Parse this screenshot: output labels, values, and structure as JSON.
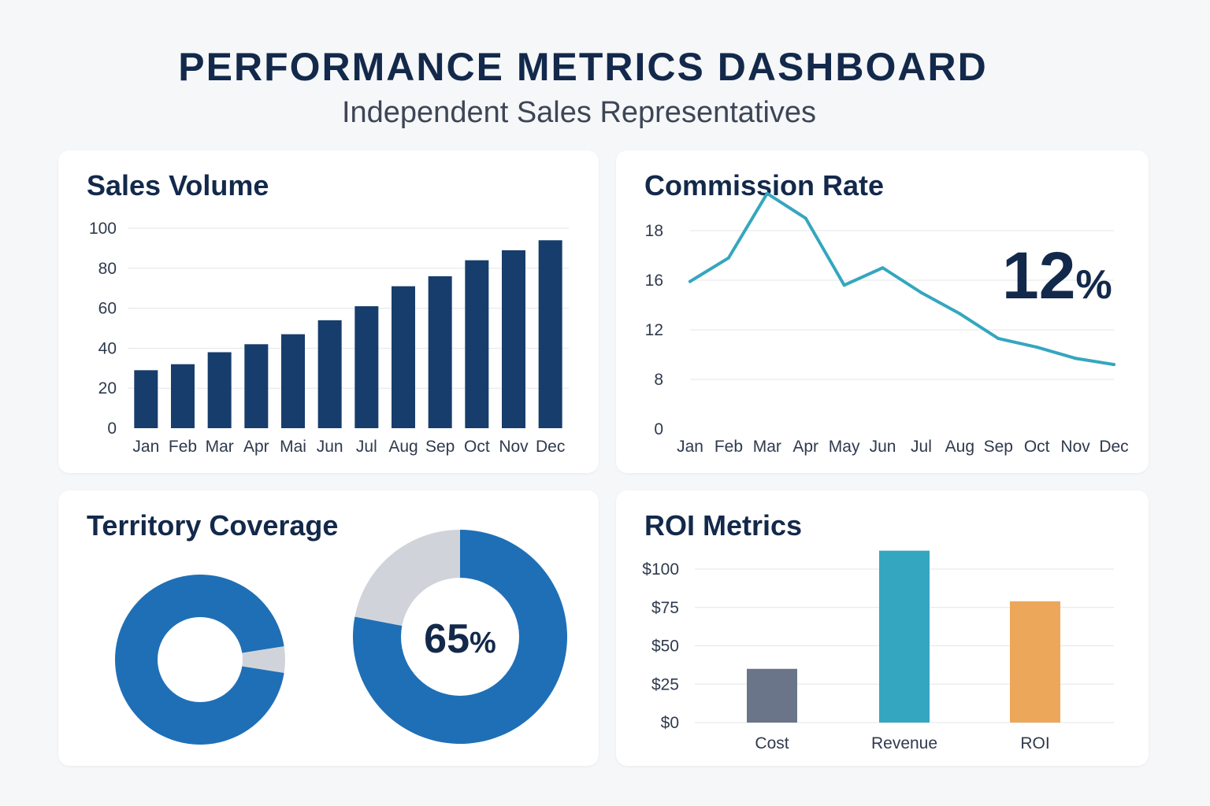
{
  "header": {
    "title": "PERFORMANCE METRICS DASHBOARD",
    "subtitle": "Independent Sales Representatives"
  },
  "colors": {
    "navy": "#163d6b",
    "teal": "#35a6bf",
    "blue": "#1f6fb6",
    "gray": "#d0d4da",
    "slate": "#6a7589",
    "orange": "#eda75a",
    "grid": "#e3e6ea"
  },
  "chart_data": [
    {
      "id": "sales",
      "type": "bar",
      "title": "Sales Volume",
      "categories": [
        "Jan",
        "Feb",
        "Mar",
        "Apr",
        "Mai",
        "Jun",
        "Jul",
        "Aug",
        "Sep",
        "Oct",
        "Nov",
        "Dec"
      ],
      "values": [
        29,
        32,
        38,
        42,
        47,
        54,
        61,
        71,
        76,
        84,
        89,
        94
      ],
      "yticks": [
        "0",
        "20",
        "40",
        "60",
        "80",
        "100"
      ],
      "ylim": [
        0,
        100
      ]
    },
    {
      "id": "commission",
      "type": "line",
      "title": "Commission Rate",
      "categories": [
        "Jan",
        "Feb",
        "Mar",
        "Apr",
        "May",
        "Jun",
        "Jul",
        "Aug",
        "Sep",
        "Oct",
        "Nov",
        "Dec"
      ],
      "values": [
        15.9,
        16.9,
        19.5,
        18.5,
        15.6,
        16.5,
        15.0,
        13.3,
        11.3,
        10.6,
        9.7,
        9.2
      ],
      "yticks": [
        "0",
        "8",
        "12",
        "16",
        "18"
      ],
      "highlight": "12%"
    },
    {
      "id": "territory",
      "type": "pie",
      "title": "Territory Coverage",
      "small_donut": {
        "covered": 95,
        "remaining": 5
      },
      "large_donut": {
        "covered": 78,
        "remaining": 22
      },
      "label": "65%"
    },
    {
      "id": "roi",
      "type": "bar",
      "title": "ROI Metrics",
      "categories": [
        "Cost",
        "Revenue",
        "ROI"
      ],
      "values": [
        35,
        112,
        79
      ],
      "yticks": [
        "$0",
        "$25",
        "$50",
        "$75",
        "$100"
      ],
      "ylim": [
        0,
        100
      ]
    }
  ]
}
